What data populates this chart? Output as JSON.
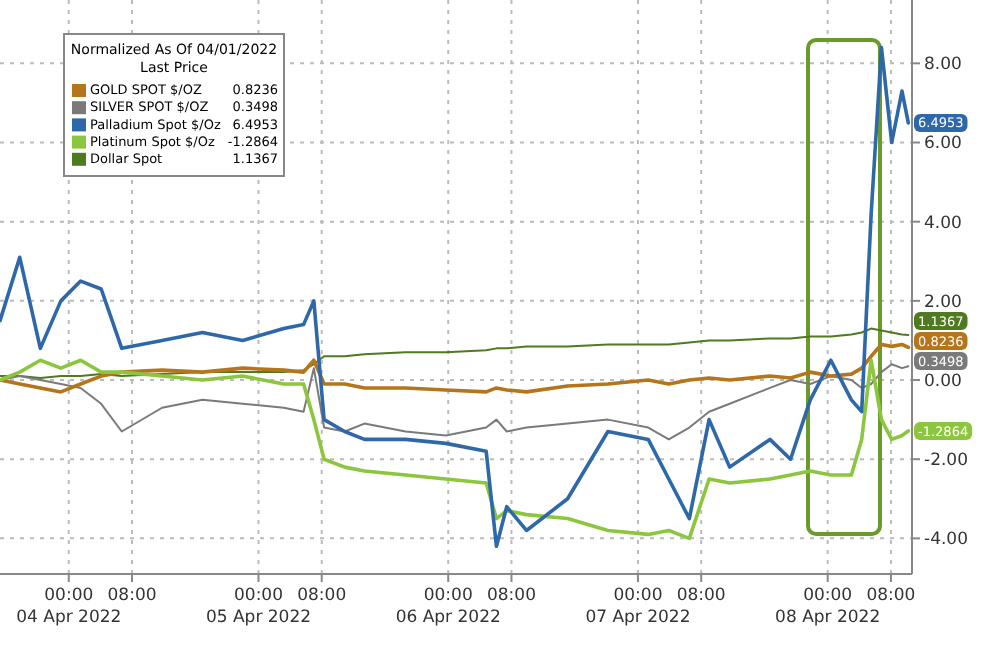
{
  "chart_data": {
    "type": "line",
    "legend_title": "Normalized As Of 04/01/2022\nLast Price",
    "legend": "top left",
    "grid": true,
    "line_style": "solid",
    "marker": "none",
    "xlim": [
      "2022-04-03T15:18",
      "2022-04-08T10:40"
    ],
    "ylim": [
      -4.9,
      9.6
    ],
    "xticks": [
      {
        "value": "2022-04-04T00:00",
        "label": "00:00\n04 Apr 2022"
      },
      {
        "value": "2022-04-04T08:00",
        "label": "08:00"
      },
      {
        "value": "2022-04-05T00:00",
        "label": "00:00\n05 Apr 2022"
      },
      {
        "value": "2022-04-05T08:00",
        "label": "08:00"
      },
      {
        "value": "2022-04-06T00:00",
        "label": "00:00\n06 Apr 2022"
      },
      {
        "value": "2022-04-06T08:00",
        "label": "08:00"
      },
      {
        "value": "2022-04-07T00:00",
        "label": "00:00\n07 Apr 2022"
      },
      {
        "value": "2022-04-07T08:00",
        "label": "08:00"
      },
      {
        "value": "2022-04-08T00:00",
        "label": "00:00\n08 Apr 2022"
      },
      {
        "value": "2022-04-08T08:00",
        "label": "08:00"
      }
    ],
    "yticks": [
      {
        "value": -4,
        "label": "-4.00"
      },
      {
        "value": -2,
        "label": "-2.00"
      },
      {
        "value": 0,
        "label": "0.00"
      },
      {
        "value": 2,
        "label": "2.00"
      },
      {
        "value": 4,
        "label": "4.00"
      },
      {
        "value": 6,
        "label": "6.00"
      },
      {
        "value": 8,
        "label": "8.00"
      }
    ],
    "x": [
      "2022-04-03T15:18",
      "2022-04-03T17:48",
      "2022-04-03T20:24",
      "2022-04-03T23:00",
      "2022-04-04T01:30",
      "2022-04-04T04:06",
      "2022-04-04T06:42",
      "2022-04-04T11:48",
      "2022-04-04T16:54",
      "2022-04-04T22:00",
      "2022-04-05T03:12",
      "2022-04-05T05:42",
      "2022-04-05T07:00",
      "2022-04-05T08:18",
      "2022-04-05T10:54",
      "2022-04-05T13:24",
      "2022-04-05T18:36",
      "2022-04-05T23:42",
      "2022-04-06T04:48",
      "2022-04-06T06:06",
      "2022-04-06T07:24",
      "2022-04-06T09:54",
      "2022-04-06T15:06",
      "2022-04-06T20:12",
      "2022-04-07T01:18",
      "2022-04-07T03:54",
      "2022-04-07T06:30",
      "2022-04-07T09:00",
      "2022-04-07T11:36",
      "2022-04-07T16:42",
      "2022-04-07T19:18",
      "2022-04-07T21:48",
      "2022-04-08T00:24",
      "2022-04-08T03:00",
      "2022-04-08T04:18",
      "2022-04-08T05:30",
      "2022-04-08T06:48",
      "2022-04-08T08:06",
      "2022-04-08T09:24",
      "2022-04-08T10:12"
    ],
    "series": [
      {
        "name": "GOLD SPOT $/OZ",
        "color": "#b5761b",
        "values": [
          0,
          -0.1,
          -0.2,
          -0.3,
          -0.1,
          0.1,
          0.2,
          0.25,
          0.2,
          0.3,
          0.25,
          0.2,
          0.5,
          -0.1,
          -0.1,
          -0.2,
          -0.2,
          -0.25,
          -0.3,
          -0.2,
          -0.25,
          -0.3,
          -0.15,
          -0.1,
          0,
          -0.1,
          0,
          0.05,
          0,
          0.1,
          0.05,
          0.2,
          0.1,
          0.15,
          0.3,
          0.6,
          0.9,
          0.85,
          0.9,
          0.8236
        ],
        "value_labels": [
          null,
          null,
          null,
          null,
          null,
          null,
          null,
          null,
          null,
          null,
          null,
          null,
          null,
          null,
          null,
          null,
          null,
          null,
          null,
          null,
          null,
          null,
          null,
          null,
          null,
          null,
          null,
          null,
          null,
          null,
          null,
          null,
          null,
          null,
          null,
          null,
          null,
          null,
          null,
          "0.8236"
        ]
      },
      {
        "name": "SILVER SPOT $/OZ",
        "color": "#7a7a7a",
        "values": [
          0,
          0.1,
          0,
          -0.1,
          -0.2,
          -0.6,
          -1.3,
          -0.7,
          -0.5,
          -0.6,
          -0.7,
          -0.8,
          0.3,
          -1.2,
          -1.3,
          -1.1,
          -1.3,
          -1.4,
          -1.2,
          -1.0,
          -1.3,
          -1.2,
          -1.1,
          -1.0,
          -1.2,
          -1.5,
          -1.2,
          -0.8,
          -0.6,
          -0.2,
          0,
          -0.1,
          0.1,
          0,
          -0.2,
          -0.1,
          0.2,
          0.4,
          0.3,
          0.3498
        ],
        "value_labels": [
          null,
          null,
          null,
          null,
          null,
          null,
          null,
          null,
          null,
          null,
          null,
          null,
          null,
          null,
          null,
          null,
          null,
          null,
          null,
          null,
          null,
          null,
          null,
          null,
          null,
          null,
          null,
          null,
          null,
          null,
          null,
          null,
          null,
          null,
          null,
          null,
          null,
          null,
          null,
          "0.3498"
        ]
      },
      {
        "name": "Palladium Spot $/Oz",
        "color": "#2f68a8",
        "values": [
          1.5,
          3.1,
          0.8,
          2.0,
          2.5,
          2.3,
          0.8,
          1.0,
          1.2,
          1.0,
          1.3,
          1.4,
          2.0,
          -1.0,
          -1.3,
          -1.5,
          -1.5,
          -1.6,
          -1.8,
          -4.2,
          -3.2,
          -3.8,
          -3.0,
          -1.3,
          -1.5,
          -2.5,
          -3.5,
          -1.0,
          -2.2,
          -1.5,
          -2.0,
          -0.5,
          0.5,
          -0.5,
          -0.8,
          4.2,
          8.4,
          6.0,
          7.3,
          6.4953
        ],
        "value_labels": [
          null,
          null,
          null,
          null,
          null,
          null,
          null,
          null,
          null,
          null,
          null,
          null,
          null,
          null,
          null,
          null,
          null,
          null,
          null,
          null,
          null,
          null,
          null,
          null,
          null,
          null,
          null,
          null,
          null,
          null,
          null,
          null,
          null,
          null,
          null,
          null,
          null,
          null,
          null,
          "6.4953"
        ]
      },
      {
        "name": "Platinum Spot $/Oz",
        "color": "#8cc63f",
        "values": [
          0,
          0.2,
          0.5,
          0.3,
          0.5,
          0.2,
          0.2,
          0.1,
          0,
          0.1,
          -0.1,
          -0.1,
          -1.0,
          -2.0,
          -2.2,
          -2.3,
          -2.4,
          -2.5,
          -2.6,
          -3.5,
          -3.3,
          -3.4,
          -3.5,
          -3.8,
          -3.9,
          -3.8,
          -4.0,
          -2.5,
          -2.6,
          -2.5,
          -2.4,
          -2.3,
          -2.4,
          -2.4,
          -1.5,
          0.5,
          -1.0,
          -1.5,
          -1.4,
          -1.2864
        ],
        "value_labels": [
          null,
          null,
          null,
          null,
          null,
          null,
          null,
          null,
          null,
          null,
          null,
          null,
          null,
          null,
          null,
          null,
          null,
          null,
          null,
          null,
          null,
          null,
          null,
          null,
          null,
          null,
          null,
          null,
          null,
          null,
          null,
          null,
          null,
          null,
          null,
          null,
          null,
          null,
          null,
          "-1.2864"
        ]
      },
      {
        "name": "Dollar Spot",
        "color": "#4f7a1f",
        "values": [
          0.1,
          0.1,
          0.05,
          0.1,
          0.1,
          0.15,
          0.1,
          0.15,
          0.2,
          0.2,
          0.2,
          0.25,
          0.4,
          0.6,
          0.6,
          0.65,
          0.7,
          0.7,
          0.75,
          0.8,
          0.8,
          0.85,
          0.85,
          0.9,
          0.9,
          0.9,
          0.95,
          1.0,
          1.0,
          1.05,
          1.05,
          1.1,
          1.1,
          1.15,
          1.2,
          1.3,
          1.25,
          1.2,
          1.15,
          1.1367
        ],
        "value_labels": [
          null,
          null,
          null,
          null,
          null,
          null,
          null,
          null,
          null,
          null,
          null,
          null,
          null,
          null,
          null,
          null,
          null,
          null,
          null,
          null,
          null,
          null,
          null,
          null,
          null,
          null,
          null,
          null,
          null,
          null,
          null,
          null,
          null,
          null,
          null,
          null,
          null,
          null,
          null,
          "1.1367"
        ]
      }
    ]
  }
}
